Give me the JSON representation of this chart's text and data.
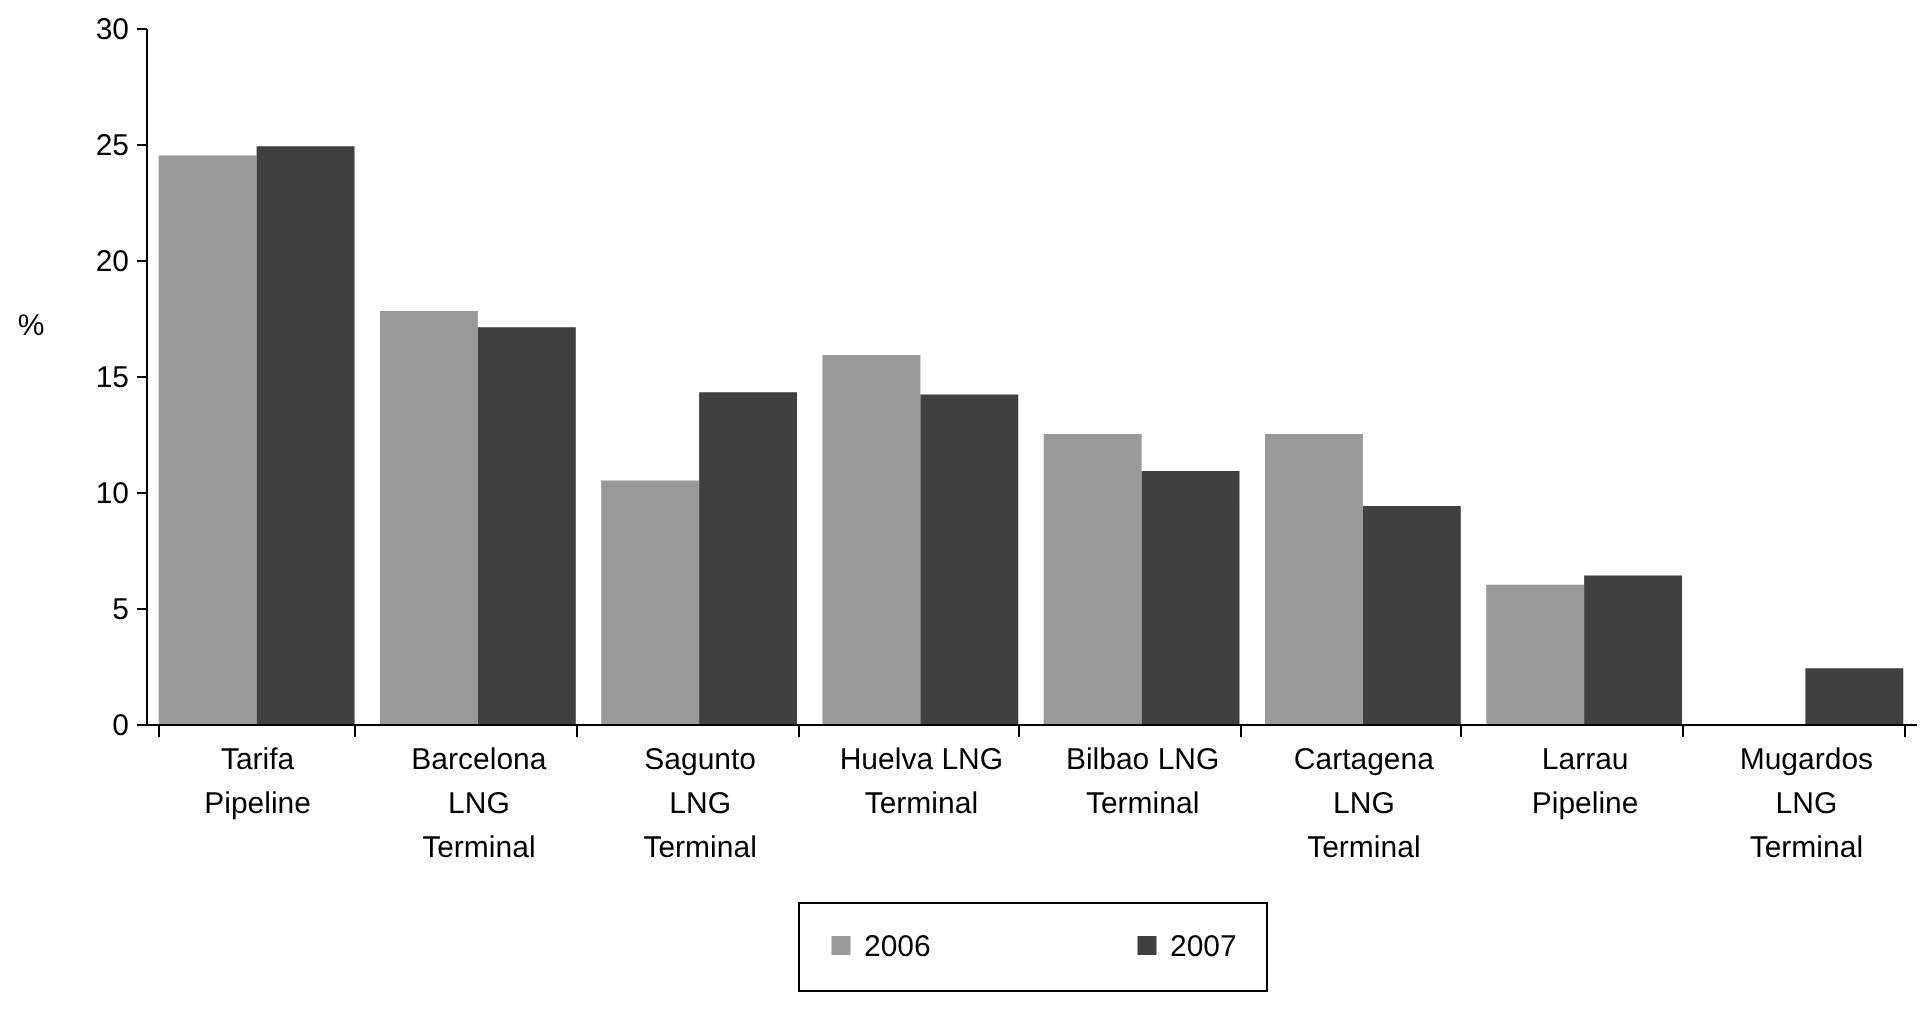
{
  "chart_data": {
    "type": "bar",
    "ylabel": "%",
    "categories": [
      "Tarifa Pipeline",
      "Barcelona LNG Terminal",
      "Sagunto LNG Terminal",
      "Huelva LNG Terminal",
      "Bilbao LNG Terminal",
      "Cartagena LNG Terminal",
      "Larrau Pipeline",
      "Mugardos LNG Terminal"
    ],
    "series": [
      {
        "name": "2006",
        "color": "#999999",
        "values": [
          24.5,
          17.8,
          10.5,
          15.9,
          12.5,
          12.5,
          6.0,
          null
        ]
      },
      {
        "name": "2007",
        "color": "#404040",
        "values": [
          24.9,
          17.1,
          14.3,
          14.2,
          10.9,
          9.4,
          6.4,
          2.4
        ]
      }
    ],
    "ylim": [
      0,
      30
    ],
    "yticks": [
      0,
      5,
      10,
      15,
      20,
      25,
      30
    ],
    "legend": "bottom"
  }
}
